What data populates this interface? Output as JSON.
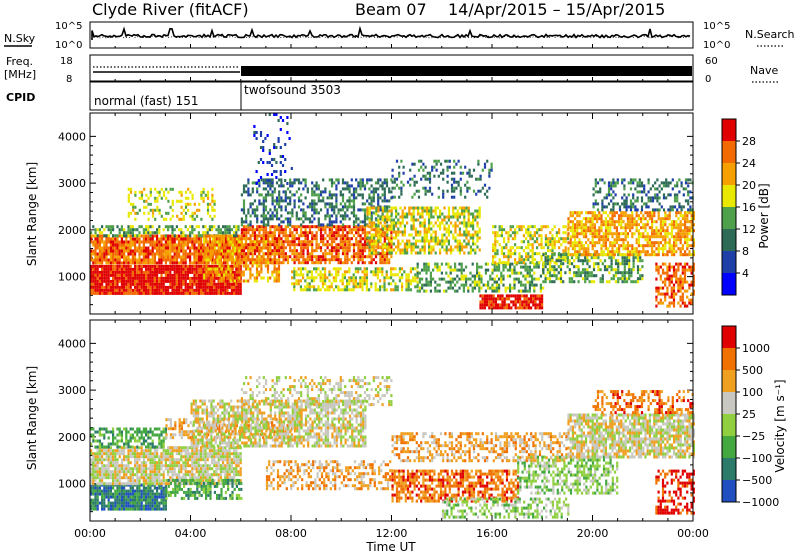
{
  "header": {
    "station": "Clyde River (fitACF)",
    "beam": "Beam 07",
    "date_range": "14/Apr/2015 – 15/Apr/2015"
  },
  "noise_panel": {
    "left_label": "N.Sky",
    "right_label": "N.Search",
    "ticks": [
      "10^5",
      "10^0"
    ]
  },
  "freq_panel": {
    "left_label_1": "Freq.",
    "left_label_2": "[MHz]",
    "left_ticks": [
      "18",
      "8"
    ],
    "right_label": "Nave",
    "right_ticks": [
      "60",
      "0"
    ]
  },
  "cpid_panel": {
    "label": "CPID",
    "segments": [
      {
        "name": "normal (fast) 151",
        "start_hour": 0,
        "end_hour": 6
      },
      {
        "name": "twofsound 3503",
        "start_hour": 6,
        "end_hour": 24
      }
    ]
  },
  "chart_data": [
    {
      "type": "heatmap",
      "name": "power",
      "ylabel": "Slant Range [km]",
      "y_ticks": [
        "1000",
        "2000",
        "3000",
        "4000"
      ],
      "ylim": [
        200,
        4500
      ],
      "xlim": [
        0,
        24
      ],
      "colorbar": {
        "label": "Power [dB]",
        "ticks": [
          "4",
          "8",
          "12",
          "16",
          "20",
          "24",
          "28"
        ],
        "colors": [
          "#0000ff",
          "#1f3fa8",
          "#2e6b57",
          "#4ea04a",
          "#e8e800",
          "#f5a000",
          "#f26a00",
          "#e00000"
        ]
      },
      "bands": [
        {
          "start": 0,
          "end": 6,
          "y0": 620,
          "y1": 1250,
          "level": 7,
          "density": 0.97
        },
        {
          "start": 0,
          "end": 6,
          "y0": 1300,
          "y1": 1900,
          "level": 6,
          "density": 0.9
        },
        {
          "start": 0,
          "end": 6,
          "y0": 1900,
          "y1": 2100,
          "level": 3,
          "density": 0.55
        },
        {
          "start": 1.5,
          "end": 5,
          "y0": 2200,
          "y1": 2900,
          "level": 4,
          "density": 0.3
        },
        {
          "start": 4.5,
          "end": 7.5,
          "y0": 900,
          "y1": 1900,
          "level": 5,
          "density": 0.6
        },
        {
          "start": 6,
          "end": 12,
          "y0": 1300,
          "y1": 2100,
          "level": 6,
          "density": 0.75
        },
        {
          "start": 6,
          "end": 12,
          "y0": 2100,
          "y1": 3100,
          "level": 2,
          "density": 0.45
        },
        {
          "start": 6.5,
          "end": 8,
          "y0": 3000,
          "y1": 4500,
          "level": 1,
          "density": 0.15
        },
        {
          "start": 8,
          "end": 13,
          "y0": 700,
          "y1": 1200,
          "level": 4,
          "density": 0.55
        },
        {
          "start": 11,
          "end": 15.5,
          "y0": 1500,
          "y1": 2500,
          "level": 4,
          "density": 0.6
        },
        {
          "start": 12,
          "end": 16,
          "y0": 2700,
          "y1": 3500,
          "level": 2,
          "density": 0.25
        },
        {
          "start": 13,
          "end": 18,
          "y0": 700,
          "y1": 1300,
          "level": 3,
          "density": 0.5
        },
        {
          "start": 15.5,
          "end": 18,
          "y0": 300,
          "y1": 620,
          "level": 7,
          "density": 0.9
        },
        {
          "start": 16,
          "end": 19,
          "y0": 1300,
          "y1": 2100,
          "level": 4,
          "density": 0.5
        },
        {
          "start": 18,
          "end": 22,
          "y0": 900,
          "y1": 1500,
          "level": 3,
          "density": 0.55
        },
        {
          "start": 19,
          "end": 24,
          "y0": 1500,
          "y1": 2400,
          "level": 5,
          "density": 0.7
        },
        {
          "start": 20,
          "end": 24,
          "y0": 2400,
          "y1": 3100,
          "level": 2,
          "density": 0.4
        },
        {
          "start": 22.5,
          "end": 24,
          "y0": 400,
          "y1": 1300,
          "level": 6,
          "density": 0.6
        }
      ]
    },
    {
      "type": "heatmap",
      "name": "velocity",
      "ylabel": "Slant Range [km]",
      "y_ticks": [
        "1000",
        "2000",
        "3000",
        "4000"
      ],
      "ylim": [
        200,
        4500
      ],
      "xlim": [
        0,
        24
      ],
      "colorbar": {
        "label": "Velocity [m s⁻¹]",
        "ticks": [
          "1000",
          "500",
          "100",
          "25",
          "−25",
          "−100",
          "−500",
          "−1000"
        ],
        "colors": [
          "#2050c0",
          "#2c7a6a",
          "#44a840",
          "#90d040",
          "#c8c8c0",
          "#f0a020",
          "#f07000",
          "#e00000"
        ]
      },
      "bands": [
        {
          "start": 0,
          "end": 3,
          "y0": 450,
          "y1": 1000,
          "level": 1,
          "density": 0.9
        },
        {
          "start": 0,
          "end": 6,
          "y0": 1000,
          "y1": 1800,
          "level": 4,
          "density": 0.85
        },
        {
          "start": 0,
          "end": 3,
          "y0": 1800,
          "y1": 2200,
          "level": 2,
          "density": 0.6
        },
        {
          "start": 3,
          "end": 6,
          "y0": 700,
          "y1": 1100,
          "level": 2,
          "density": 0.55
        },
        {
          "start": 3,
          "end": 8,
          "y0": 2000,
          "y1": 2400,
          "level": 5,
          "density": 0.55
        },
        {
          "start": 4,
          "end": 11,
          "y0": 1800,
          "y1": 2800,
          "level": 4,
          "density": 0.7
        },
        {
          "start": 6,
          "end": 12,
          "y0": 2700,
          "y1": 3300,
          "level": 4,
          "density": 0.35
        },
        {
          "start": 7,
          "end": 12,
          "y0": 900,
          "y1": 1500,
          "level": 5,
          "density": 0.45
        },
        {
          "start": 12,
          "end": 17,
          "y0": 600,
          "y1": 1300,
          "level": 6,
          "density": 0.65
        },
        {
          "start": 12,
          "end": 19,
          "y0": 1500,
          "y1": 2100,
          "level": 5,
          "density": 0.5
        },
        {
          "start": 14,
          "end": 19,
          "y0": 300,
          "y1": 700,
          "level": 3,
          "density": 0.5
        },
        {
          "start": 17,
          "end": 21,
          "y0": 800,
          "y1": 1600,
          "level": 3,
          "density": 0.5
        },
        {
          "start": 19,
          "end": 24,
          "y0": 1600,
          "y1": 2500,
          "level": 4,
          "density": 0.8
        },
        {
          "start": 20,
          "end": 24,
          "y0": 2500,
          "y1": 3000,
          "level": 6,
          "density": 0.45
        },
        {
          "start": 22.5,
          "end": 24,
          "y0": 400,
          "y1": 1300,
          "level": 7,
          "density": 0.5
        }
      ]
    }
  ],
  "x_axis": {
    "label": "Time UT",
    "ticks": [
      "00:00",
      "04:00",
      "08:00",
      "12:00",
      "16:00",
      "20:00",
      "00:00"
    ]
  }
}
